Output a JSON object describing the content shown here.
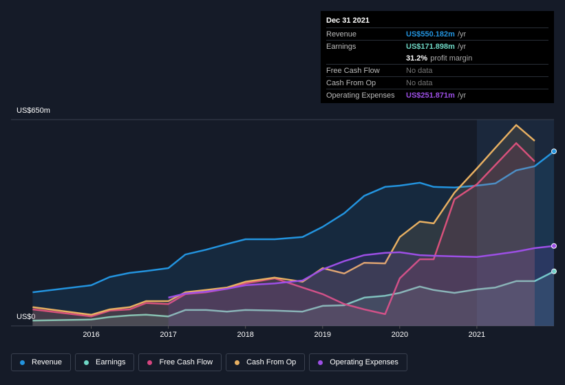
{
  "chart_data": {
    "type": "line",
    "x": [
      2015.24,
      2016.0,
      2016.24,
      2016.5,
      2016.71,
      2017.0,
      2017.22,
      2017.49,
      2017.76,
      2018.0,
      2018.38,
      2018.74,
      2019.0,
      2019.28,
      2019.54,
      2019.81,
      2020.0,
      2020.26,
      2020.44,
      2020.71,
      2021.0,
      2021.24,
      2021.51,
      2021.75,
      2022.0
    ],
    "xlim": [
      2014.96,
      2022.0
    ],
    "xticks": [
      2016,
      2017,
      2018,
      2019,
      2020,
      2021
    ],
    "ylim": [
      0,
      650
    ],
    "yticks": [
      {
        "value": 0,
        "label": "US$0"
      },
      {
        "value": 650,
        "label": "US$650m"
      }
    ],
    "series": [
      {
        "name": "Revenue",
        "color": "#2394df",
        "values": [
          106,
          128,
          154,
          167,
          173,
          182,
          225,
          240,
          258,
          273,
          273,
          280,
          312,
          355,
          410,
          438,
          442,
          451,
          438,
          436,
          442,
          449,
          490,
          503,
          550.182
        ]
      },
      {
        "name": "Earnings",
        "color": "#6fd8c6",
        "values": [
          17,
          20,
          28,
          33,
          35,
          30,
          50,
          50,
          45,
          50,
          48,
          45,
          63,
          65,
          89,
          95,
          104,
          124,
          113,
          104,
          115,
          121,
          141,
          141,
          171.898
        ]
      },
      {
        "name": "Free Cash Flow",
        "color": "#d6457f",
        "values": [
          52,
          30,
          48,
          52,
          72,
          69,
          100,
          106,
          117,
          134,
          150,
          121,
          100,
          69,
          52,
          37,
          150,
          210,
          210,
          399,
          446,
          507,
          576,
          518,
          null
        ]
      },
      {
        "name": "Cash From Op",
        "color": "#e8b062",
        "values": [
          59,
          35,
          52,
          59,
          78,
          78,
          106,
          113,
          121,
          139,
          152,
          139,
          182,
          165,
          199,
          197,
          280,
          329,
          323,
          420,
          496,
          561,
          633,
          583,
          null
        ]
      },
      {
        "name": "Operating Expenses",
        "color": "#9d4fe6",
        "values": [
          null,
          null,
          null,
          null,
          null,
          89,
          102,
          108,
          117,
          128,
          134,
          143,
          178,
          204,
          223,
          230,
          232,
          223,
          221,
          219,
          217,
          225,
          234,
          245,
          251.871
        ]
      }
    ]
  },
  "tooltip": {
    "date": "Dec 31 2021",
    "rows": [
      {
        "label": "Revenue",
        "value": "US$550.182m",
        "suffix": "/yr"
      },
      {
        "label": "Earnings",
        "value": "US$171.898m",
        "suffix": "/yr"
      },
      {
        "label": "",
        "value": "31.2%",
        "suffix": "profit margin"
      },
      {
        "label": "Free Cash Flow",
        "value": "No data",
        "suffix": ""
      },
      {
        "label": "Cash From Op",
        "value": "No data",
        "suffix": ""
      },
      {
        "label": "Operating Expenses",
        "value": "US$251.871m",
        "suffix": "/yr"
      }
    ]
  }
}
